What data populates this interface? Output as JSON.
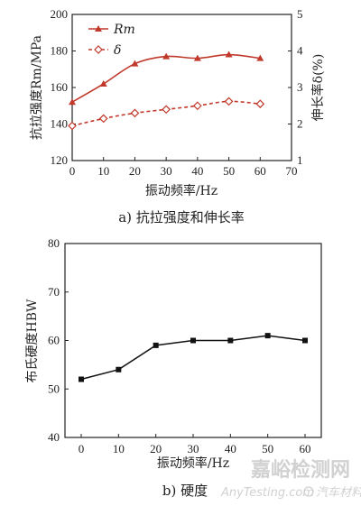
{
  "chart_data": [
    {
      "type": "line",
      "caption": "a) 抗拉强度和伸长率",
      "xlabel": "振动频率/Hz",
      "ylabel": "抗拉强度Rm/MPa",
      "y2label": "伸长率δ(%)",
      "xlim": [
        0,
        70
      ],
      "ylim": [
        120,
        200
      ],
      "y2lim": [
        1,
        5
      ],
      "xticks": [
        "0",
        "10",
        "20",
        "30",
        "40",
        "50",
        "60",
        "70"
      ],
      "yticks": [
        "120",
        "140",
        "160",
        "180",
        "200"
      ],
      "y2ticks": [
        "1",
        "2",
        "3",
        "4",
        "5"
      ],
      "x": [
        0,
        10,
        20,
        30,
        40,
        50,
        60
      ],
      "series": [
        {
          "name": "Rm",
          "axis": "left",
          "values": [
            152,
            162,
            173,
            177,
            176,
            178,
            176
          ],
          "color": "#c0392b",
          "marker": "triangle",
          "line": "solid"
        },
        {
          "name": "δ",
          "axis": "right",
          "values": [
            1.95,
            2.15,
            2.3,
            2.4,
            2.5,
            2.62,
            2.55
          ],
          "color": "#c0392b",
          "marker": "diamond-open",
          "line": "dashed"
        }
      ],
      "legend_placement": "top-left",
      "grid": false
    },
    {
      "type": "line",
      "caption": "b) 硬度",
      "xlabel": "振动频率/Hz",
      "ylabel": "布氏硬度HBW",
      "ylim": [
        40,
        80
      ],
      "xticks": [
        "0",
        "10",
        "20",
        "30",
        "40",
        "50",
        "60"
      ],
      "yticks": [
        "40",
        "50",
        "60",
        "70",
        "80"
      ],
      "x": [
        0,
        10,
        20,
        30,
        40,
        50,
        60
      ],
      "series": [
        {
          "name": "",
          "values": [
            52,
            54,
            59,
            60,
            60,
            61,
            60
          ],
          "color": "#111111",
          "marker": "square",
          "line": "solid"
        }
      ],
      "grid": false
    }
  ],
  "watermark": {
    "main": "嘉峪检测网",
    "sub": "AnyTesting.com",
    "badge": "汽车材料网"
  }
}
